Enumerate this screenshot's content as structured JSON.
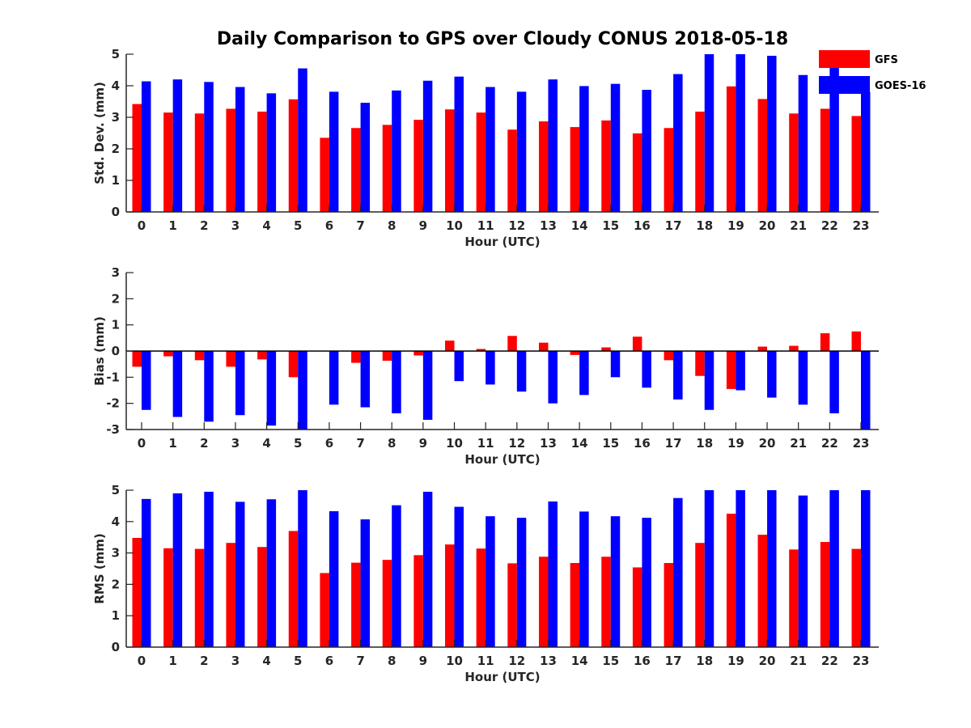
{
  "title": "Daily Comparison to GPS over Cloudy CONUS 2018-05-18",
  "legend": [
    {
      "name": "GFS",
      "color": "#ff0000"
    },
    {
      "name": "GOES-16",
      "color": "#0000ff"
    }
  ],
  "chart_data": [
    {
      "type": "bar",
      "ylabel": "Std. Dev. (mm)",
      "xlabel": "Hour (UTC)",
      "ylim": [
        0,
        5
      ],
      "yticks": [
        0,
        1,
        2,
        3,
        4,
        5
      ],
      "categories": [
        "0",
        "1",
        "2",
        "3",
        "4",
        "5",
        "6",
        "7",
        "8",
        "9",
        "10",
        "11",
        "12",
        "13",
        "14",
        "15",
        "16",
        "17",
        "18",
        "19",
        "20",
        "21",
        "22",
        "23"
      ],
      "series": [
        {
          "name": "GFS",
          "values": [
            3.42,
            3.15,
            3.12,
            3.27,
            3.18,
            3.57,
            2.35,
            2.66,
            2.76,
            2.92,
            3.25,
            3.15,
            2.61,
            2.87,
            2.69,
            2.9,
            2.49,
            2.66,
            3.18,
            3.98,
            3.58,
            3.12,
            3.27,
            3.04
          ]
        },
        {
          "name": "GOES-16",
          "values": [
            4.14,
            4.2,
            4.12,
            3.96,
            3.76,
            4.55,
            3.81,
            3.46,
            3.85,
            4.16,
            4.29,
            3.96,
            3.81,
            4.2,
            3.99,
            4.06,
            3.87,
            4.37,
            5.0,
            5.0,
            4.95,
            4.34,
            4.6,
            3.8
          ]
        }
      ]
    },
    {
      "type": "bar",
      "ylabel": "Bias (mm)",
      "xlabel": "Hour (UTC)",
      "ylim": [
        -3,
        3
      ],
      "yticks": [
        -3,
        -2,
        -1,
        0,
        1,
        2,
        3
      ],
      "zero_line": true,
      "categories": [
        "0",
        "1",
        "2",
        "3",
        "4",
        "5",
        "6",
        "7",
        "8",
        "9",
        "10",
        "11",
        "12",
        "13",
        "14",
        "15",
        "16",
        "17",
        "18",
        "19",
        "20",
        "21",
        "22",
        "23"
      ],
      "series": [
        {
          "name": "GFS",
          "values": [
            -0.6,
            -0.2,
            -0.35,
            -0.6,
            -0.32,
            -1.0,
            0.0,
            -0.45,
            -0.37,
            -0.17,
            0.4,
            0.08,
            0.58,
            0.32,
            -0.15,
            0.14,
            0.55,
            -0.35,
            -0.95,
            -1.45,
            0.17,
            0.2,
            0.68,
            0.75
          ]
        },
        {
          "name": "GOES-16",
          "values": [
            -2.25,
            -2.52,
            -2.7,
            -2.45,
            -2.85,
            -3.0,
            -2.05,
            -2.15,
            -2.38,
            -2.63,
            -1.15,
            -1.28,
            -1.55,
            -2.0,
            -1.68,
            -1.0,
            -1.4,
            -1.85,
            -2.25,
            -1.5,
            -1.78,
            -2.05,
            -2.38,
            -3.0
          ]
        }
      ]
    },
    {
      "type": "bar",
      "ylabel": "RMS (mm)",
      "xlabel": "Hour (UTC)",
      "ylim": [
        0,
        5
      ],
      "yticks": [
        0,
        1,
        2,
        3,
        4,
        5
      ],
      "categories": [
        "0",
        "1",
        "2",
        "3",
        "4",
        "5",
        "6",
        "7",
        "8",
        "9",
        "10",
        "11",
        "12",
        "13",
        "14",
        "15",
        "16",
        "17",
        "18",
        "19",
        "20",
        "21",
        "22",
        "23"
      ],
      "series": [
        {
          "name": "GFS",
          "values": [
            3.48,
            3.15,
            3.13,
            3.32,
            3.19,
            3.7,
            2.36,
            2.69,
            2.78,
            2.93,
            3.27,
            3.14,
            2.67,
            2.88,
            2.68,
            2.88,
            2.54,
            2.68,
            3.32,
            4.25,
            3.58,
            3.11,
            3.35,
            3.13
          ]
        },
        {
          "name": "GOES-16",
          "values": [
            4.72,
            4.9,
            4.95,
            4.63,
            4.71,
            5.0,
            4.33,
            4.07,
            4.52,
            4.95,
            4.47,
            4.17,
            4.12,
            4.64,
            4.32,
            4.17,
            4.12,
            4.75,
            5.0,
            5.0,
            5.0,
            4.83,
            5.0,
            5.0
          ]
        }
      ]
    }
  ]
}
